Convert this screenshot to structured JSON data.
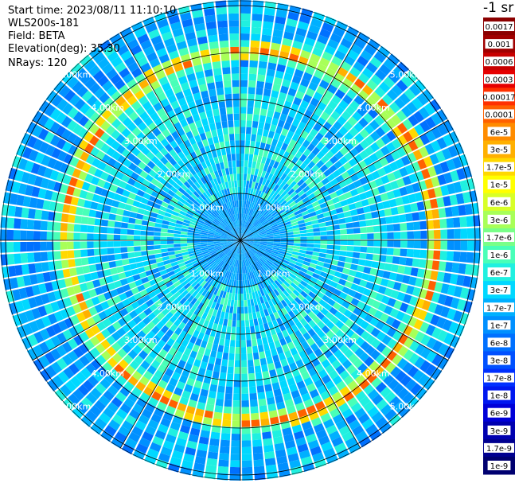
{
  "header": {
    "start_time": "Start time: 2023/08/11 11:10:10",
    "instrument": "WLS200s-181",
    "field": "Field: BETA",
    "elevation": "Elevation(deg): 35.30",
    "nrays": "NRays: 120"
  },
  "units_label": "-1 sr",
  "range_rings": {
    "labels": [
      "1.00km",
      "2.00km",
      "3.00km",
      "4.00km",
      "5.00km"
    ]
  },
  "radial_lines": 12,
  "colorbar": {
    "labels": [
      "0.0017",
      "0.001",
      "0.0006",
      "0.0003",
      "0.00017",
      "0.0001",
      "6e-5",
      "3e-5",
      "1.7e-5",
      "1e-5",
      "6e-6",
      "3e-6",
      "1.7e-6",
      "1e-6",
      "6e-7",
      "3e-7",
      "1.7e-7",
      "1e-7",
      "6e-8",
      "3e-8",
      "1.7e-8",
      "1e-8",
      "6e-9",
      "3e-9",
      "1.7e-9",
      "1e-9"
    ],
    "colors": [
      "#8b0000",
      "#a00000",
      "#c80000",
      "#e60000",
      "#ff3000",
      "#ff6000",
      "#ff8c00",
      "#ffb000",
      "#ffd800",
      "#ffff00",
      "#d8ff28",
      "#a8ff58",
      "#78ff88",
      "#48ffb8",
      "#20f0e0",
      "#00d8ff",
      "#00b0ff",
      "#0090ff",
      "#0070ff",
      "#0050ff",
      "#0030ff",
      "#0018f0",
      "#0000d8",
      "#0000b0",
      "#000090",
      "#000070"
    ]
  }
}
